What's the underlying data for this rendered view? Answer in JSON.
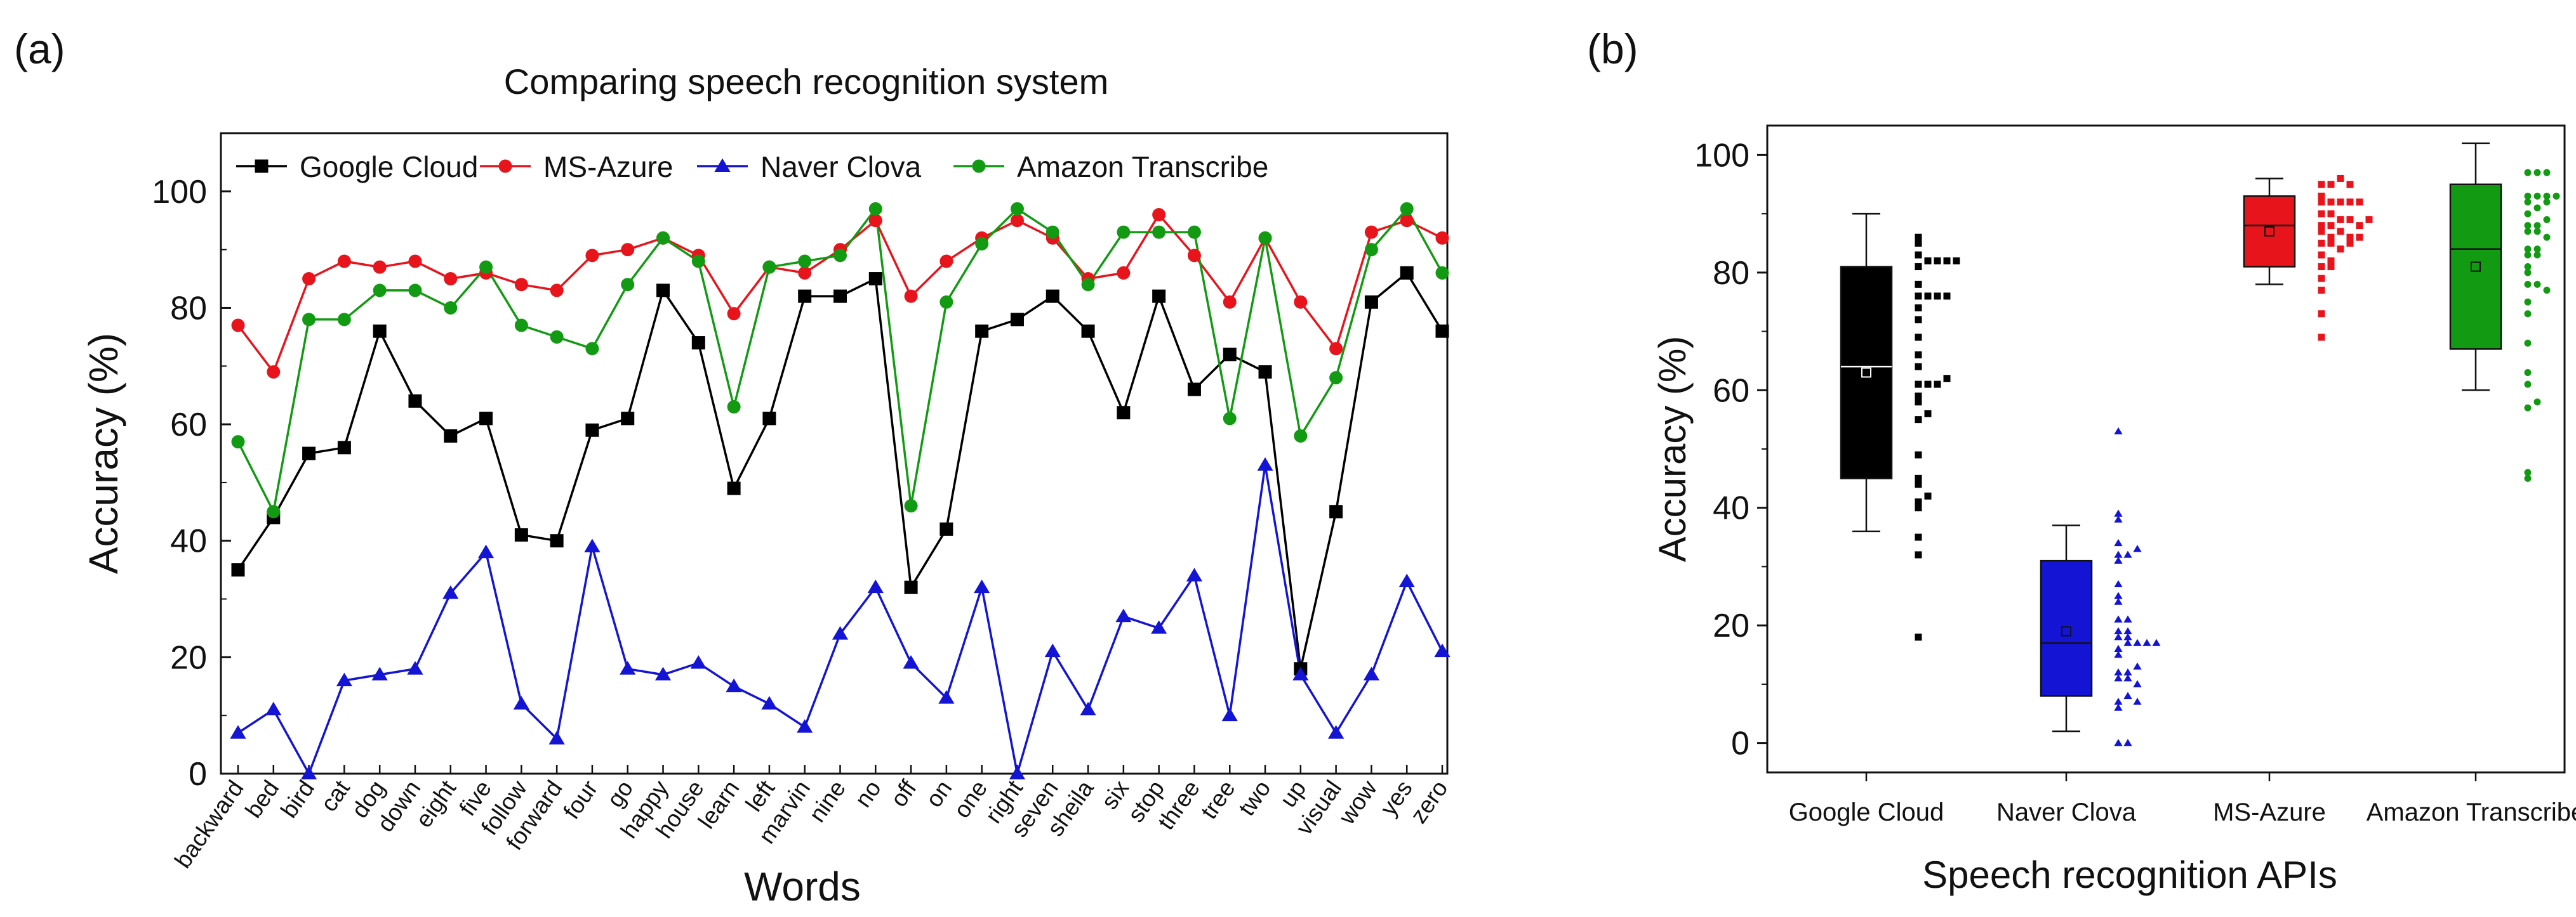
{
  "panel_a_label": "(a)",
  "panel_b_label": "(b)",
  "chart_data": [
    {
      "type": "line",
      "title": "Comparing speech recognition system",
      "xlabel": "Words",
      "ylabel": "Accuracy (%)",
      "ylim": [
        0,
        110
      ],
      "yticks": [
        0,
        20,
        40,
        60,
        80,
        100
      ],
      "legend_position": "top",
      "categories": [
        "backward",
        "bed",
        "bird",
        "cat",
        "dog",
        "down",
        "eight",
        "five",
        "follow",
        "forward",
        "four",
        "go",
        "happy",
        "house",
        "learn",
        "left",
        "marvin",
        "nine",
        "no",
        "off",
        "on",
        "one",
        "right",
        "seven",
        "sheila",
        "six",
        "stop",
        "three",
        "tree",
        "two",
        "up",
        "visual",
        "wow",
        "yes",
        "zero"
      ],
      "series": [
        {
          "name": "Google Cloud",
          "color": "#000000",
          "marker": "square",
          "values": [
            35,
            44,
            55,
            56,
            76,
            64,
            58,
            61,
            41,
            40,
            59,
            61,
            83,
            74,
            49,
            61,
            82,
            82,
            85,
            32,
            42,
            76,
            78,
            82,
            76,
            62,
            82,
            66,
            72,
            69,
            18,
            45,
            81,
            86,
            76
          ]
        },
        {
          "name": "MS-Azure",
          "color": "#e8141c",
          "marker": "circle",
          "values": [
            77,
            69,
            85,
            88,
            87,
            88,
            85,
            86,
            84,
            83,
            89,
            90,
            92,
            89,
            79,
            87,
            86,
            90,
            95,
            82,
            88,
            92,
            95,
            92,
            85,
            86,
            96,
            89,
            81,
            92,
            81,
            73,
            93,
            95,
            92
          ]
        },
        {
          "name": "Naver Clova",
          "color": "#1414d4",
          "marker": "triangle",
          "values": [
            7,
            11,
            0,
            16,
            17,
            18,
            31,
            38,
            12,
            6,
            39,
            18,
            17,
            19,
            15,
            12,
            8,
            24,
            32,
            19,
            13,
            32,
            0,
            21,
            11,
            27,
            25,
            34,
            10,
            53,
            17,
            7,
            17,
            33,
            21
          ]
        },
        {
          "name": "Amazon Transcribe",
          "color": "#129a12",
          "marker": "circle",
          "values": [
            57,
            45,
            78,
            78,
            83,
            83,
            80,
            87,
            77,
            75,
            73,
            84,
            92,
            88,
            63,
            87,
            88,
            89,
            97,
            46,
            81,
            91,
            97,
            93,
            84,
            93,
            93,
            93,
            61,
            92,
            58,
            68,
            90,
            97,
            86
          ]
        }
      ]
    },
    {
      "type": "box",
      "xlabel": "Speech recognition APIs",
      "ylabel": "Accuracy (%)",
      "ylim": [
        -5,
        105
      ],
      "yticks": [
        0,
        20,
        40,
        60,
        80,
        100
      ],
      "categories": [
        "Google Cloud",
        "Naver Clova",
        "MS-Azure",
        "Amazon Transcribe"
      ],
      "boxes": [
        {
          "name": "Google Cloud",
          "color": "#000000",
          "marker": "square",
          "q1": 45,
          "median": 64,
          "q3": 81,
          "mean": 63,
          "whisker_low": 36,
          "whisker_high": 90
        },
        {
          "name": "Naver Clova",
          "color": "#1414d4",
          "marker": "triangle",
          "q1": 8,
          "median": 17,
          "q3": 31,
          "mean": 19,
          "whisker_low": 2,
          "whisker_high": 37
        },
        {
          "name": "MS-Azure",
          "color": "#e8141c",
          "marker": "square",
          "q1": 81,
          "median": 88,
          "q3": 93,
          "mean": 87,
          "whisker_low": 78,
          "whisker_high": 96
        },
        {
          "name": "Amazon Transcribe",
          "color": "#129a12",
          "marker": "circle",
          "q1": 67,
          "median": 84,
          "q3": 95,
          "mean": 81,
          "whisker_low": 60,
          "whisker_high": 102
        }
      ]
    }
  ]
}
